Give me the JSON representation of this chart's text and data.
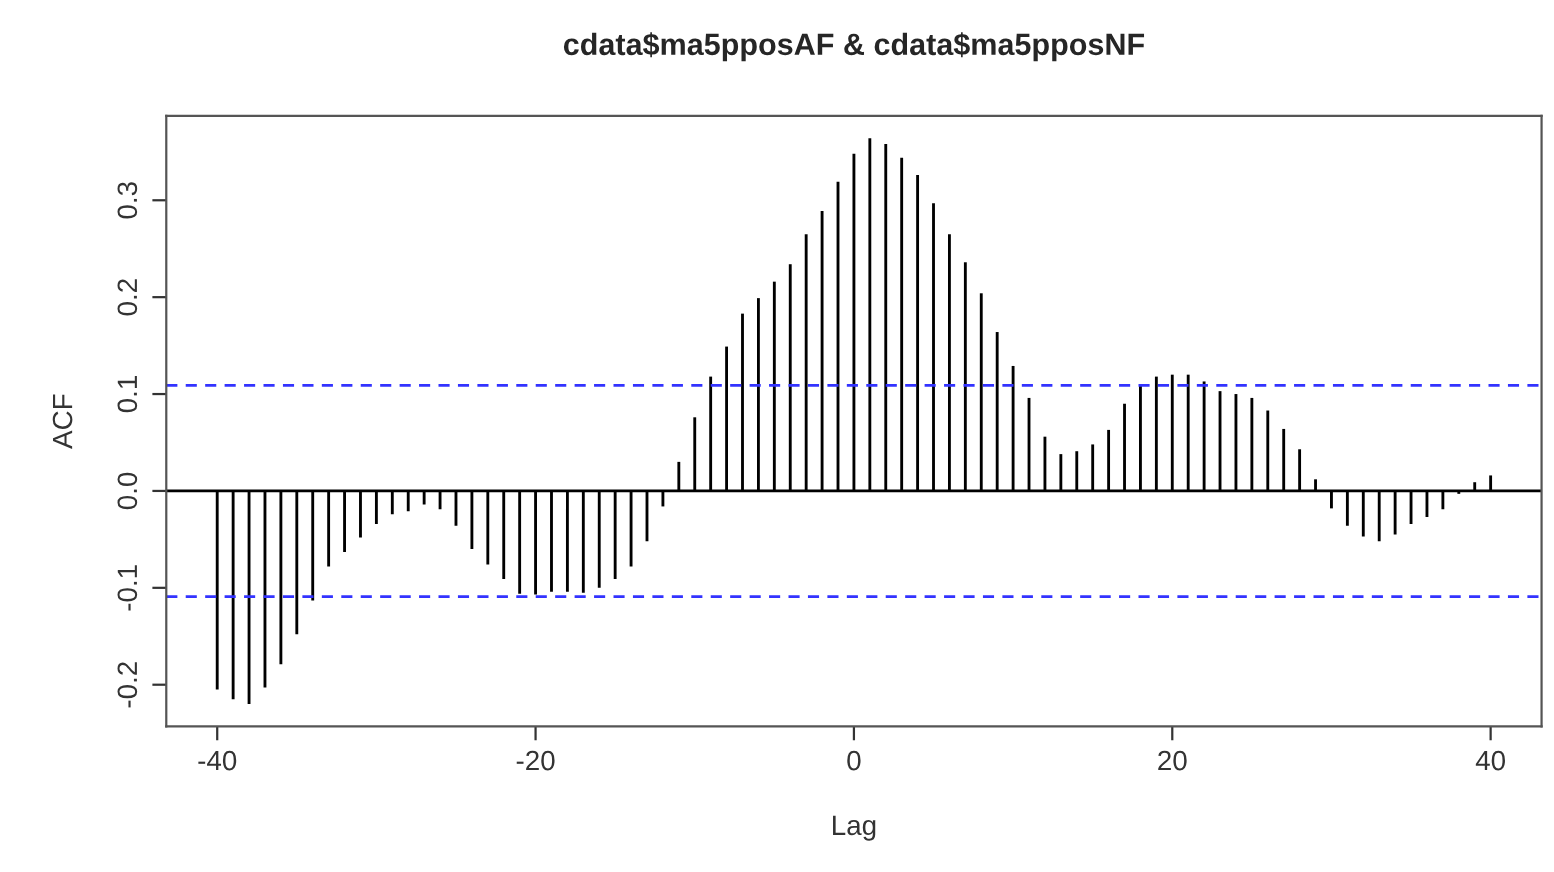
{
  "chart_data": {
    "type": "bar",
    "title": "cdata$ma5pposAF & cdata$ma5pposNF",
    "xlabel": "Lag",
    "ylabel": "ACF",
    "x": [
      -40,
      -39,
      -38,
      -37,
      -36,
      -35,
      -34,
      -33,
      -32,
      -31,
      -30,
      -29,
      -28,
      -27,
      -26,
      -25,
      -24,
      -23,
      -22,
      -21,
      -20,
      -19,
      -18,
      -17,
      -16,
      -15,
      -14,
      -13,
      -12,
      -11,
      -10,
      -9,
      -8,
      -7,
      -6,
      -5,
      -4,
      -3,
      -2,
      -1,
      0,
      1,
      2,
      3,
      4,
      5,
      6,
      7,
      8,
      9,
      10,
      11,
      12,
      13,
      14,
      15,
      16,
      17,
      18,
      19,
      20,
      21,
      22,
      23,
      24,
      25,
      26,
      27,
      28,
      29,
      30,
      31,
      32,
      33,
      34,
      35,
      36,
      37,
      38,
      39,
      40
    ],
    "values": [
      -0.205,
      -0.215,
      -0.22,
      -0.203,
      -0.179,
      -0.148,
      -0.113,
      -0.078,
      -0.063,
      -0.048,
      -0.034,
      -0.024,
      -0.021,
      -0.014,
      -0.019,
      -0.036,
      -0.06,
      -0.076,
      -0.091,
      -0.106,
      -0.107,
      -0.104,
      -0.104,
      -0.105,
      -0.1,
      -0.091,
      -0.078,
      -0.052,
      -0.016,
      0.03,
      0.076,
      0.118,
      0.149,
      0.183,
      0.199,
      0.216,
      0.234,
      0.265,
      0.289,
      0.319,
      0.348,
      0.364,
      0.358,
      0.344,
      0.326,
      0.297,
      0.265,
      0.236,
      0.204,
      0.164,
      0.129,
      0.096,
      0.056,
      0.038,
      0.041,
      0.048,
      0.063,
      0.09,
      0.109,
      0.118,
      0.12,
      0.12,
      0.113,
      0.103,
      0.1,
      0.096,
      0.083,
      0.064,
      0.043,
      0.012,
      -0.018,
      -0.036,
      -0.047,
      -0.052,
      -0.045,
      -0.034,
      -0.027,
      -0.019,
      -0.003,
      0.009,
      0.016
    ],
    "color": "#000000",
    "xlim": [
      -43.2,
      43.2
    ],
    "xticks": [
      -40,
      -20,
      0,
      20,
      40
    ],
    "ylim": [
      -0.243,
      0.387
    ],
    "yticks": [
      -0.2,
      -0.1,
      {
        "value": 0,
        "label": "0.0"
      },
      0.1,
      0.2,
      0.3
    ],
    "ref_lines": [
      {
        "axis": "y",
        "value": 0,
        "color": "#000000",
        "line_style": "solid"
      },
      {
        "axis": "y",
        "value": 0.109,
        "color": "#3333ff",
        "line_style": "dashed"
      },
      {
        "axis": "y",
        "value": -0.109,
        "color": "#3333ff",
        "line_style": "dashed"
      }
    ],
    "grid": false,
    "legend": false
  }
}
